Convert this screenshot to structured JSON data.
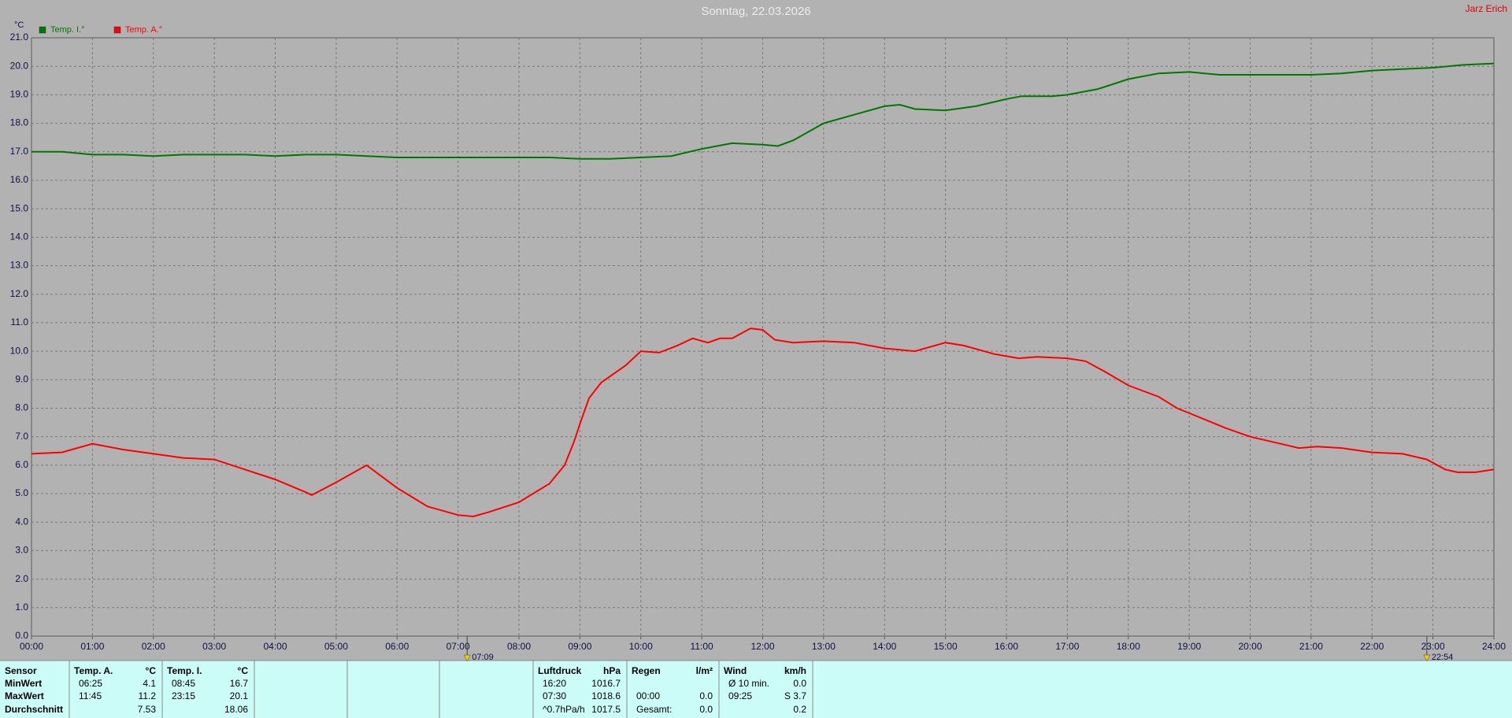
{
  "chart_data": {
    "type": "line",
    "title": "Sonntag, 22.03.2026",
    "author": "Jarz Erich",
    "y_label": "°C",
    "grid": true,
    "xlim": [
      0,
      24
    ],
    "xticks": [
      {
        "value": 0,
        "label": "00:00"
      },
      {
        "value": 1,
        "label": "01:00"
      },
      {
        "value": 2,
        "label": "02:00"
      },
      {
        "value": 3,
        "label": "03:00"
      },
      {
        "value": 4,
        "label": "04:00"
      },
      {
        "value": 5,
        "label": "05:00"
      },
      {
        "value": 6,
        "label": "06:00"
      },
      {
        "value": 7,
        "label": "07:00"
      },
      {
        "value": 8,
        "label": "08:00"
      },
      {
        "value": 9,
        "label": "09:00"
      },
      {
        "value": 10,
        "label": "10:00"
      },
      {
        "value": 11,
        "label": "11:00"
      },
      {
        "value": 12,
        "label": "12:00"
      },
      {
        "value": 13,
        "label": "13:00"
      },
      {
        "value": 14,
        "label": "14:00"
      },
      {
        "value": 15,
        "label": "15:00"
      },
      {
        "value": 16,
        "label": "16:00"
      },
      {
        "value": 17,
        "label": "17:00"
      },
      {
        "value": 18,
        "label": "18:00"
      },
      {
        "value": 19,
        "label": "19:00"
      },
      {
        "value": 20,
        "label": "20:00"
      },
      {
        "value": 21,
        "label": "21:00"
      },
      {
        "value": 22,
        "label": "22:00"
      },
      {
        "value": 23,
        "label": "23:00"
      },
      {
        "value": 24,
        "label": "24:00"
      }
    ],
    "ylim": [
      0,
      21
    ],
    "yticks": [
      {
        "value": 0,
        "label": "0.0"
      },
      {
        "value": 1,
        "label": "1.0"
      },
      {
        "value": 2,
        "label": "2.0"
      },
      {
        "value": 3,
        "label": "3.0"
      },
      {
        "value": 4,
        "label": "4.0"
      },
      {
        "value": 5,
        "label": "5.0"
      },
      {
        "value": 6,
        "label": "6.0"
      },
      {
        "value": 7,
        "label": "7.0"
      },
      {
        "value": 8,
        "label": "8.0"
      },
      {
        "value": 9,
        "label": "9.0"
      },
      {
        "value": 10,
        "label": "10.0"
      },
      {
        "value": 11,
        "label": "11.0"
      },
      {
        "value": 12,
        "label": "12.0"
      },
      {
        "value": 13,
        "label": "13.0"
      },
      {
        "value": 14,
        "label": "14.0"
      },
      {
        "value": 15,
        "label": "15.0"
      },
      {
        "value": 16,
        "label": "16.0"
      },
      {
        "value": 17,
        "label": "17.0"
      },
      {
        "value": 18,
        "label": "18.0"
      },
      {
        "value": 19,
        "label": "19.0"
      },
      {
        "value": 20,
        "label": "20.0"
      },
      {
        "value": 21,
        "label": "21.0"
      }
    ],
    "annotations": [
      {
        "x": 7.15,
        "label": "07:09"
      },
      {
        "x": 22.9,
        "label": "22:54"
      }
    ],
    "series": [
      {
        "name": "Temp. I.°",
        "color": "#007800",
        "x": [
          0,
          0.5,
          1,
          1.5,
          2,
          2.5,
          3,
          3.5,
          4,
          4.5,
          5,
          5.5,
          6,
          6.5,
          7,
          7.5,
          8,
          8.5,
          9,
          9.5,
          10,
          10.5,
          11,
          11.5,
          12,
          12.25,
          12.5,
          13,
          13.5,
          14,
          14.25,
          14.5,
          15,
          15.5,
          16,
          16.25,
          16.75,
          17,
          17.5,
          18,
          18.5,
          19,
          19.5,
          20,
          21,
          21.5,
          22,
          22.5,
          23,
          23.5,
          24
        ],
        "values": [
          17.0,
          17.0,
          16.9,
          16.9,
          16.85,
          16.9,
          16.9,
          16.9,
          16.85,
          16.9,
          16.9,
          16.85,
          16.8,
          16.8,
          16.8,
          16.8,
          16.8,
          16.8,
          16.75,
          16.75,
          16.8,
          16.85,
          17.1,
          17.3,
          17.25,
          17.2,
          17.4,
          18.0,
          18.3,
          18.6,
          18.65,
          18.5,
          18.45,
          18.6,
          18.85,
          18.95,
          18.95,
          19.0,
          19.2,
          19.55,
          19.75,
          19.8,
          19.7,
          19.7,
          19.7,
          19.75,
          19.85,
          19.9,
          19.95,
          20.05,
          20.1
        ]
      },
      {
        "name": "Temp. A.°",
        "color": "#ff0000",
        "x": [
          0,
          0.5,
          1,
          1.5,
          2,
          2.5,
          3,
          3.5,
          4,
          4.5,
          4.6,
          5,
          5.5,
          6,
          6.5,
          7,
          7.25,
          7.5,
          8,
          8.5,
          8.75,
          8.9,
          9,
          9.15,
          9.35,
          9.75,
          10,
          10.3,
          10.6,
          10.85,
          11.1,
          11.3,
          11.5,
          11.8,
          12,
          12.2,
          12.5,
          13,
          13.5,
          14,
          14.5,
          15,
          15.3,
          15.8,
          16.2,
          16.5,
          17,
          17.3,
          17.6,
          18,
          18.5,
          18.8,
          19.2,
          19.6,
          20,
          20.5,
          20.8,
          21.1,
          21.5,
          22,
          22.5,
          22.9,
          23.2,
          23.4,
          23.7,
          24
        ],
        "values": [
          6.4,
          6.45,
          6.75,
          6.55,
          6.4,
          6.25,
          6.2,
          5.85,
          5.5,
          5.05,
          4.95,
          5.4,
          6.0,
          5.2,
          4.55,
          4.25,
          4.2,
          4.35,
          4.7,
          5.35,
          6.0,
          6.8,
          7.45,
          8.35,
          8.9,
          9.5,
          10.0,
          9.95,
          10.2,
          10.45,
          10.3,
          10.45,
          10.45,
          10.8,
          10.75,
          10.4,
          10.3,
          10.35,
          10.3,
          10.1,
          10.0,
          10.3,
          10.2,
          9.9,
          9.75,
          9.8,
          9.75,
          9.65,
          9.3,
          8.8,
          8.4,
          8.0,
          7.65,
          7.3,
          7.0,
          6.75,
          6.6,
          6.65,
          6.6,
          6.45,
          6.4,
          6.2,
          5.85,
          5.75,
          5.75,
          5.85
        ]
      }
    ]
  },
  "footer": {
    "row_labels": [
      "Sensor",
      "MinWert",
      "MaxWert",
      "Durchschnitt"
    ],
    "columns": [
      {
        "name": "Temp. A.",
        "unit": "°C",
        "rows": [
          [
            "06:25",
            "4.1"
          ],
          [
            "11:45",
            "11.2"
          ],
          [
            null,
            "7.53"
          ]
        ]
      },
      {
        "name": "Temp. I.",
        "unit": "°C",
        "rows": [
          [
            "08:45",
            "16.7"
          ],
          [
            "23:15",
            "20.1"
          ],
          [
            null,
            "18.06"
          ]
        ]
      },
      {
        "name": "Luftdruck",
        "unit": "hPa",
        "rows": [
          [
            "16:20",
            "1016.7"
          ],
          [
            "07:30",
            "1018.6"
          ],
          [
            "^0.7hPa/h",
            "1017.5"
          ]
        ]
      },
      {
        "name": "Regen",
        "unit": "l/m²",
        "rows": [
          [
            null,
            null
          ],
          [
            "00:00",
            "0.0"
          ],
          [
            "Gesamt:",
            "0.0"
          ]
        ]
      },
      {
        "name": "Wind",
        "unit": "km/h",
        "rows": [
          [
            "Ø 10 min.",
            "0.0"
          ],
          [
            "09:25",
            "S 3.7"
          ],
          [
            null,
            "0.2"
          ]
        ]
      }
    ]
  }
}
